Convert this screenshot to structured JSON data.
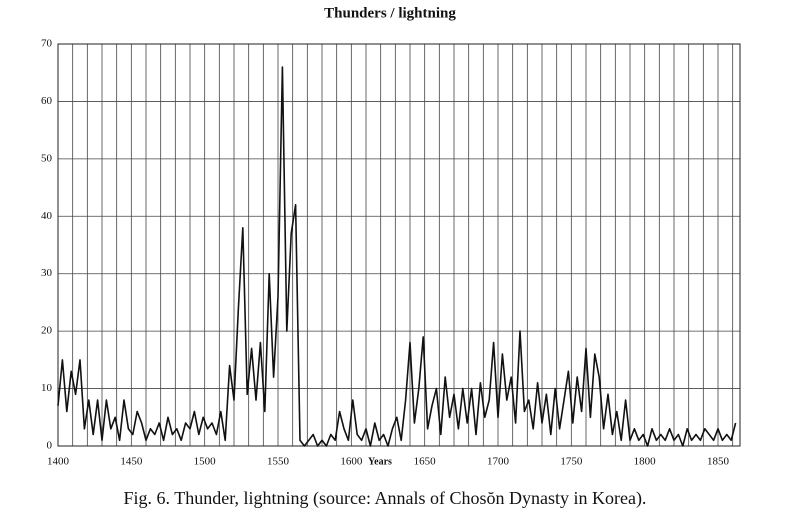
{
  "chart_data": {
    "type": "line",
    "title": "Thunders / lightning",
    "xlabel": "Years",
    "caption": "Fig. 6. Thunder, lightning (source: Annals of Chosŏn Dynasty in Korea).",
    "x": [
      1400,
      1403,
      1406,
      1409,
      1412,
      1415,
      1418,
      1421,
      1424,
      1427,
      1430,
      1433,
      1436,
      1439,
      1442,
      1445,
      1448,
      1451,
      1454,
      1457,
      1460,
      1463,
      1466,
      1469,
      1472,
      1475,
      1478,
      1481,
      1484,
      1487,
      1490,
      1493,
      1496,
      1499,
      1502,
      1505,
      1508,
      1511,
      1514,
      1517,
      1520,
      1523,
      1526,
      1529,
      1532,
      1535,
      1538,
      1541,
      1544,
      1547,
      1550,
      1553,
      1556,
      1559,
      1562,
      1565,
      1568,
      1571,
      1574,
      1577,
      1580,
      1583,
      1586,
      1589,
      1592,
      1595,
      1598,
      1601,
      1604,
      1607,
      1610,
      1613,
      1616,
      1619,
      1622,
      1625,
      1628,
      1631,
      1634,
      1637,
      1640,
      1643,
      1646,
      1649,
      1652,
      1655,
      1658,
      1661,
      1664,
      1667,
      1670,
      1673,
      1676,
      1679,
      1682,
      1685,
      1688,
      1691,
      1694,
      1697,
      1700,
      1703,
      1706,
      1709,
      1712,
      1715,
      1718,
      1721,
      1724,
      1727,
      1730,
      1733,
      1736,
      1739,
      1742,
      1745,
      1748,
      1751,
      1754,
      1757,
      1760,
      1763,
      1766,
      1769,
      1772,
      1775,
      1778,
      1781,
      1784,
      1787,
      1790,
      1793,
      1796,
      1799,
      1802,
      1805,
      1808,
      1811,
      1814,
      1817,
      1820,
      1823,
      1826,
      1829,
      1832,
      1835,
      1838,
      1841,
      1844,
      1847,
      1850,
      1853,
      1856,
      1859,
      1862
    ],
    "series": [
      {
        "name": "Thunders / lightning",
        "color": "#111111",
        "values": [
          7,
          15,
          6,
          13,
          9,
          15,
          3,
          8,
          2,
          8,
          1,
          8,
          3,
          5,
          1,
          8,
          3,
          2,
          6,
          4,
          1,
          3,
          2,
          4,
          1,
          5,
          2,
          3,
          1,
          4,
          3,
          6,
          2,
          5,
          3,
          4,
          2,
          6,
          1,
          14,
          8,
          24,
          38,
          9,
          17,
          8,
          18,
          6,
          30,
          12,
          26,
          66,
          20,
          37,
          42,
          1,
          0,
          1,
          2,
          0,
          1,
          0,
          2,
          1,
          6,
          3,
          1,
          8,
          2,
          1,
          3,
          0,
          4,
          1,
          2,
          0,
          3,
          5,
          1,
          8,
          18,
          4,
          10,
          19,
          3,
          7,
          10,
          2,
          12,
          5,
          9,
          3,
          10,
          4,
          10,
          2,
          11,
          5,
          8,
          18,
          5,
          16,
          8,
          12,
          4,
          20,
          6,
          8,
          3,
          11,
          4,
          9,
          2,
          10,
          3,
          8,
          13,
          4,
          12,
          6,
          17,
          5,
          16,
          12,
          3,
          9,
          2,
          6,
          1,
          8,
          1,
          3,
          1,
          2,
          0,
          3,
          1,
          2,
          1,
          3,
          1,
          2,
          0,
          3,
          1,
          2,
          1,
          3,
          2,
          1,
          3,
          1,
          2,
          1,
          4
        ]
      }
    ],
    "xlim": [
      1400,
      1865
    ],
    "xticks": [
      1400,
      1450,
      1500,
      1550,
      1600,
      1650,
      1700,
      1750,
      1800,
      1850
    ],
    "xgrid": [
      1410,
      1420,
      1430,
      1440,
      1460,
      1470,
      1480,
      1490,
      1510,
      1520,
      1530,
      1540,
      1560,
      1570,
      1580,
      1590,
      1610,
      1620,
      1630,
      1640,
      1660,
      1670,
      1680,
      1690,
      1710,
      1720,
      1730,
      1740,
      1760,
      1770,
      1780,
      1790,
      1810,
      1820,
      1830,
      1840,
      1860
    ],
    "ylim": [
      0,
      70
    ],
    "yticks": [
      0,
      10,
      20,
      30,
      40,
      50,
      60,
      70
    ],
    "grid": true
  }
}
